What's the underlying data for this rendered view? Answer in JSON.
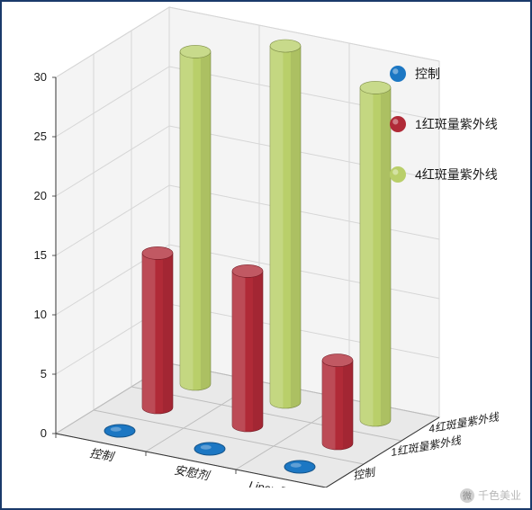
{
  "chart": {
    "type": "3d-cylinder-bar",
    "x_categories": [
      "控制",
      "安慰剂",
      "Lipex PreAct"
    ],
    "z_categories": [
      "控制",
      "1红斑量紫外线",
      "4红斑量紫外线"
    ],
    "series": [
      {
        "name": "控制",
        "color": "#1c77c3",
        "values": [
          0,
          0,
          0
        ],
        "z_index": 0
      },
      {
        "name": "1红斑量紫外线",
        "color": "#b02a37",
        "values": [
          13,
          13,
          7
        ],
        "z_index": 1
      },
      {
        "name": "4红斑量紫外线",
        "color": "#b9cf6a",
        "values": [
          28,
          30,
          28
        ],
        "z_index": 2
      }
    ],
    "y_axis": {
      "min": 0,
      "max": 30,
      "tick_step": 5,
      "tick_labels": [
        "0",
        "5",
        "10",
        "15",
        "20",
        "25",
        "30"
      ]
    },
    "floor_fill": "#e9e9e9",
    "floor_grid": "#bdbdbd",
    "wall_fill": "#f4f4f4",
    "wall_grid": "#d6d6d6",
    "axis_font_size": 13,
    "axis_font_color": "#1a1a1a",
    "legend": {
      "position": "right",
      "item_font_size": 14,
      "text_color": "#1a1a1a",
      "marker_shape": "circle",
      "marker_size": 18,
      "items": [
        {
          "label": "控制",
          "color": "#1c77c3"
        },
        {
          "label": "1红斑量紫外线",
          "color": "#b02a37"
        },
        {
          "label": "4红斑量紫外线",
          "color": "#b9cf6a"
        }
      ]
    },
    "cylinder": {
      "rx": 17,
      "ry": 7,
      "highlight_alpha": 0.35,
      "shade_alpha": 0.2
    }
  },
  "watermark": {
    "icon_text": "微",
    "label": "千色美业",
    "color": "#b8b8b8"
  }
}
